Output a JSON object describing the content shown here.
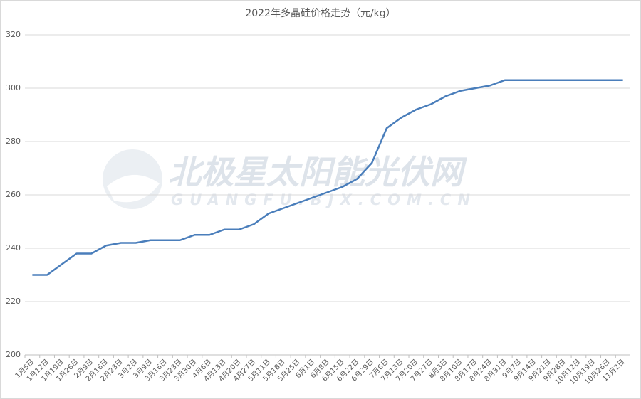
{
  "chart_data": {
    "type": "line",
    "title": "2022年多晶硅价格走势（元/kg）",
    "watermark": "北极星太阳能光伏网",
    "watermark_url": "GUANGFU.BJX.COM.CN",
    "categories": [
      "1月5日",
      "1月12日",
      "1月19日",
      "1月26日",
      "2月9日",
      "2月16日",
      "2月23日",
      "3月2日",
      "3月9日",
      "3月16日",
      "3月23日",
      "3月30日",
      "4月6日",
      "4月13日",
      "4月20日",
      "4月27日",
      "5月11日",
      "5月18日",
      "5月25日",
      "6月1日",
      "6月8日",
      "6月15日",
      "6月22日",
      "6月29日",
      "7月6日",
      "7月13日",
      "7月20日",
      "7月27日",
      "8月3日",
      "8月10日",
      "8月17日",
      "8月24日",
      "8月31日",
      "9月7日",
      "9月14日",
      "9月21日",
      "9月28日",
      "10月12日",
      "10月19日",
      "10月26日",
      "11月2日"
    ],
    "values": [
      230,
      230,
      234,
      238,
      238,
      241,
      242,
      242,
      243,
      243,
      243,
      245,
      245,
      247,
      247,
      249,
      253,
      255,
      257,
      259,
      261,
      263,
      266,
      272,
      285,
      289,
      292,
      294,
      297,
      299,
      300,
      301,
      303,
      303,
      303,
      303,
      303,
      303,
      303,
      303,
      303
    ],
    "color": "#4a7ebb",
    "ylim": [
      200,
      320
    ],
    "yticks": [
      200,
      220,
      240,
      260,
      280,
      300,
      320
    ],
    "grid": true
  }
}
